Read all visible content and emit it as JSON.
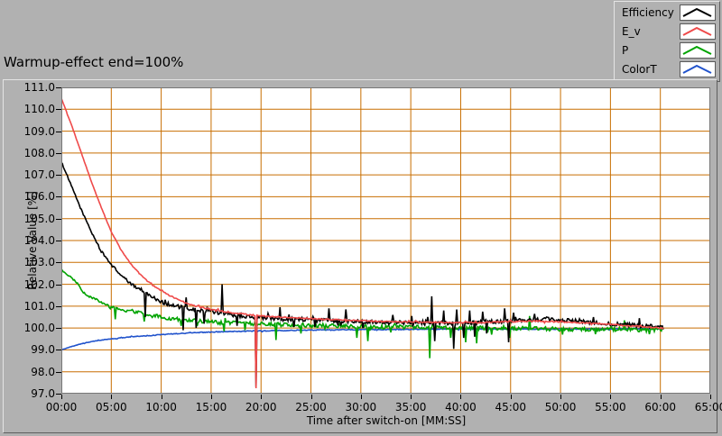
{
  "title": "Warmup-effect end=100%",
  "legend": {
    "items": [
      {
        "label": "Efficiency",
        "color": "#000000"
      },
      {
        "label": "E_v",
        "color": "#ef4a4a"
      },
      {
        "label": "P",
        "color": "#00a300"
      },
      {
        "label": "ColorT",
        "color": "#2153cc"
      }
    ]
  },
  "chart_data": {
    "type": "line",
    "title": "Warmup-effect end=100%",
    "xlabel": "Time after switch-on [MM:SS]",
    "ylabel": "Relative Value [%]",
    "xlim_minutes": [
      0,
      65
    ],
    "ylim": [
      97.0,
      111.0
    ],
    "grid": true,
    "grid_color": "#c86e00",
    "plot_bg": "#ffffff",
    "frame_color": "#777777",
    "legend_position": "top-right",
    "x_ticks": [
      {
        "t": 0,
        "label": "00:00"
      },
      {
        "t": 5,
        "label": "05:00"
      },
      {
        "t": 10,
        "label": "10:00"
      },
      {
        "t": 15,
        "label": "15:00"
      },
      {
        "t": 20,
        "label": "20:00"
      },
      {
        "t": 25,
        "label": "25:00"
      },
      {
        "t": 30,
        "label": "30:00"
      },
      {
        "t": 35,
        "label": "35:00"
      },
      {
        "t": 40,
        "label": "40:00"
      },
      {
        "t": 45,
        "label": "45:00"
      },
      {
        "t": 50,
        "label": "50:00"
      },
      {
        "t": 55,
        "label": "55:00"
      },
      {
        "t": 60,
        "label": "60:00"
      },
      {
        "t": 65,
        "label": "65:00"
      }
    ],
    "y_ticks": [
      {
        "v": 97,
        "label": "97.0"
      },
      {
        "v": 98,
        "label": "98.0"
      },
      {
        "v": 99,
        "label": "99.0"
      },
      {
        "v": 100,
        "label": "100.0"
      },
      {
        "v": 101,
        "label": "101.0"
      },
      {
        "v": 102,
        "label": "102.0"
      },
      {
        "v": 103,
        "label": "103.0"
      },
      {
        "v": 104,
        "label": "104.0"
      },
      {
        "v": 105,
        "label": "105.0"
      },
      {
        "v": 106,
        "label": "106.0"
      },
      {
        "v": 107,
        "label": "107.0"
      },
      {
        "v": 108,
        "label": "108.0"
      },
      {
        "v": 109,
        "label": "109.0"
      },
      {
        "v": 110,
        "label": "110.0"
      },
      {
        "v": 111,
        "label": "111.0"
      }
    ],
    "t_end_minutes": 60.3,
    "draw_order": [
      3,
      2,
      0,
      1
    ],
    "series": [
      {
        "name": "Efficiency",
        "color": "#000000",
        "noise": 0.09,
        "width": 1.6,
        "points": [
          [
            0,
            107.6
          ],
          [
            1,
            106.5
          ],
          [
            2,
            105.4
          ],
          [
            3,
            104.4
          ],
          [
            4,
            103.5
          ],
          [
            5,
            102.9
          ],
          [
            6,
            102.4
          ],
          [
            7,
            102.0
          ],
          [
            8,
            101.75
          ],
          [
            9,
            101.45
          ],
          [
            10,
            101.2
          ],
          [
            11,
            101.05
          ],
          [
            12,
            100.95
          ],
          [
            13,
            100.85
          ],
          [
            14,
            100.8
          ],
          [
            15,
            100.75
          ],
          [
            16,
            100.7
          ],
          [
            17,
            100.62
          ],
          [
            18,
            100.56
          ],
          [
            19,
            100.5
          ],
          [
            20,
            100.48
          ],
          [
            21,
            100.45
          ],
          [
            22,
            100.43
          ],
          [
            23,
            100.4
          ],
          [
            24,
            100.4
          ],
          [
            25,
            100.38
          ],
          [
            26,
            100.36
          ],
          [
            27,
            100.35
          ],
          [
            28,
            100.33
          ],
          [
            29,
            100.32
          ],
          [
            30,
            100.3
          ],
          [
            31,
            100.3
          ],
          [
            32,
            100.28
          ],
          [
            33,
            100.28
          ],
          [
            34,
            100.26
          ],
          [
            35,
            100.26
          ],
          [
            36,
            100.28
          ],
          [
            37,
            100.28
          ],
          [
            38,
            100.25
          ],
          [
            39,
            100.22
          ],
          [
            40,
            100.22
          ],
          [
            41,
            100.25
          ],
          [
            42,
            100.28
          ],
          [
            43,
            100.3
          ],
          [
            44,
            100.3
          ],
          [
            45,
            100.32
          ],
          [
            46,
            100.34
          ],
          [
            47,
            100.36
          ],
          [
            48,
            100.4
          ],
          [
            49,
            100.4
          ],
          [
            50,
            100.38
          ],
          [
            51,
            100.34
          ],
          [
            52,
            100.3
          ],
          [
            53,
            100.26
          ],
          [
            54,
            100.22
          ],
          [
            55,
            100.2
          ],
          [
            56,
            100.17
          ],
          [
            57,
            100.14
          ],
          [
            58,
            100.1
          ],
          [
            59,
            100.07
          ],
          [
            60,
            100.05
          ],
          [
            60.3,
            100.0
          ]
        ],
        "spikes": [
          [
            8.4,
            100.5
          ],
          [
            12.2,
            99.9
          ],
          [
            12.5,
            101.4
          ],
          [
            13.5,
            100.0
          ],
          [
            14.3,
            100.2
          ],
          [
            16.1,
            102.0
          ],
          [
            17.6,
            100.1
          ],
          [
            19.5,
            97.3
          ],
          [
            21.9,
            100.95
          ],
          [
            23.3,
            100.05
          ],
          [
            25.4,
            100.05
          ],
          [
            26.8,
            100.9
          ],
          [
            28.5,
            100.85
          ],
          [
            30.2,
            100.0
          ],
          [
            33.2,
            100.6
          ],
          [
            35.1,
            100.55
          ],
          [
            37.1,
            101.45
          ],
          [
            37.4,
            99.4
          ],
          [
            38.3,
            100.8
          ],
          [
            39.3,
            99.05
          ],
          [
            39.6,
            100.85
          ],
          [
            40.3,
            99.55
          ],
          [
            40.9,
            100.8
          ],
          [
            41.4,
            99.6
          ],
          [
            42.2,
            100.75
          ],
          [
            42.6,
            99.75
          ],
          [
            44.4,
            100.9
          ],
          [
            44.8,
            99.35
          ],
          [
            45.3,
            100.7
          ],
          [
            47.4,
            100.65
          ],
          [
            53.3,
            100.5
          ],
          [
            57.9,
            100.45
          ]
        ]
      },
      {
        "name": "E_v",
        "color": "#ef4a4a",
        "noise": 0.03,
        "width": 1.6,
        "points": [
          [
            0,
            110.5
          ],
          [
            1,
            109.3
          ],
          [
            2,
            108.0
          ],
          [
            3,
            106.7
          ],
          [
            4,
            105.5
          ],
          [
            5,
            104.4
          ],
          [
            6,
            103.55
          ],
          [
            7,
            102.9
          ],
          [
            8,
            102.4
          ],
          [
            9,
            102.0
          ],
          [
            10,
            101.7
          ],
          [
            11,
            101.45
          ],
          [
            12,
            101.25
          ],
          [
            13,
            101.05
          ],
          [
            14,
            100.95
          ],
          [
            15,
            100.85
          ],
          [
            16,
            100.78
          ],
          [
            17,
            100.7
          ],
          [
            18,
            100.65
          ],
          [
            19,
            100.6
          ],
          [
            20,
            100.55
          ],
          [
            21,
            100.52
          ],
          [
            22,
            100.5
          ],
          [
            23,
            100.47
          ],
          [
            24,
            100.45
          ],
          [
            25,
            100.43
          ],
          [
            26,
            100.4
          ],
          [
            28,
            100.38
          ],
          [
            30,
            100.34
          ],
          [
            32,
            100.3
          ],
          [
            34,
            100.28
          ],
          [
            36,
            100.27
          ],
          [
            38,
            100.26
          ],
          [
            40,
            100.25
          ],
          [
            42,
            100.25
          ],
          [
            44,
            100.28
          ],
          [
            46,
            100.3
          ],
          [
            48,
            100.32
          ],
          [
            50,
            100.28
          ],
          [
            52,
            100.24
          ],
          [
            54,
            100.2
          ],
          [
            56,
            100.13
          ],
          [
            58,
            100.07
          ],
          [
            60,
            100.0
          ],
          [
            60.3,
            100.0
          ]
        ],
        "spikes": [
          [
            19.5,
            97.25
          ]
        ]
      },
      {
        "name": "P",
        "color": "#00a300",
        "noise": 0.09,
        "width": 1.6,
        "points": [
          [
            0,
            102.65
          ],
          [
            0.5,
            102.45
          ],
          [
            1,
            102.3
          ],
          [
            1.5,
            102.1
          ],
          [
            2,
            101.75
          ],
          [
            2.5,
            101.5
          ],
          [
            3,
            101.4
          ],
          [
            3.5,
            101.3
          ],
          [
            4,
            101.15
          ],
          [
            4.5,
            101.05
          ],
          [
            5,
            100.95
          ],
          [
            6,
            100.85
          ],
          [
            7,
            100.75
          ],
          [
            8,
            100.7
          ],
          [
            9,
            100.6
          ],
          [
            10,
            100.5
          ],
          [
            11,
            100.42
          ],
          [
            12,
            100.38
          ],
          [
            13,
            100.35
          ],
          [
            14,
            100.3
          ],
          [
            15,
            100.28
          ],
          [
            16,
            100.25
          ],
          [
            17,
            100.25
          ],
          [
            18,
            100.22
          ],
          [
            19,
            100.2
          ],
          [
            20,
            100.2
          ],
          [
            21,
            100.18
          ],
          [
            22,
            100.16
          ],
          [
            23,
            100.15
          ],
          [
            24,
            100.14
          ],
          [
            25,
            100.12
          ],
          [
            26,
            100.12
          ],
          [
            27,
            100.1
          ],
          [
            28,
            100.1
          ],
          [
            29,
            100.08
          ],
          [
            30,
            100.08
          ],
          [
            31,
            100.06
          ],
          [
            32,
            100.05
          ],
          [
            34,
            100.05
          ],
          [
            36,
            100.04
          ],
          [
            37,
            100.02
          ],
          [
            38,
            100.02
          ],
          [
            39,
            100.0
          ],
          [
            42,
            100.0
          ],
          [
            44,
            100.0
          ],
          [
            45,
            99.98
          ],
          [
            46,
            99.98
          ],
          [
            47,
            100.0
          ],
          [
            48,
            99.98
          ],
          [
            49,
            99.96
          ],
          [
            50,
            99.95
          ],
          [
            52,
            99.93
          ],
          [
            54,
            99.93
          ],
          [
            56,
            99.95
          ],
          [
            58,
            99.9
          ],
          [
            60,
            99.95
          ],
          [
            60.3,
            99.95
          ]
        ],
        "spikes": [
          [
            5.4,
            100.4
          ],
          [
            8.3,
            100.3
          ],
          [
            12.0,
            100.1
          ],
          [
            16.3,
            99.85
          ],
          [
            18.4,
            99.9
          ],
          [
            21.5,
            99.45
          ],
          [
            24.0,
            99.75
          ],
          [
            29.6,
            99.55
          ],
          [
            30.7,
            99.4
          ],
          [
            33.0,
            99.8
          ],
          [
            36.9,
            98.62
          ],
          [
            39.0,
            99.55
          ],
          [
            40.5,
            99.35
          ],
          [
            41.6,
            99.3
          ],
          [
            43.1,
            99.7
          ],
          [
            44.9,
            99.55
          ],
          [
            46.9,
            100.55
          ],
          [
            50.2,
            99.7
          ],
          [
            53.5,
            99.72
          ],
          [
            56.4,
            100.35
          ],
          [
            58.9,
            99.72
          ]
        ]
      },
      {
        "name": "ColorT",
        "color": "#2153cc",
        "noise": 0.018,
        "width": 1.6,
        "points": [
          [
            0,
            99.0
          ],
          [
            1,
            99.15
          ],
          [
            2,
            99.28
          ],
          [
            3,
            99.38
          ],
          [
            4,
            99.45
          ],
          [
            5,
            99.5
          ],
          [
            6,
            99.55
          ],
          [
            7,
            99.6
          ],
          [
            8,
            99.63
          ],
          [
            9,
            99.66
          ],
          [
            10,
            99.7
          ],
          [
            12,
            99.75
          ],
          [
            14,
            99.8
          ],
          [
            16,
            99.83
          ],
          [
            18,
            99.85
          ],
          [
            20,
            99.87
          ],
          [
            24,
            99.9
          ],
          [
            28,
            99.92
          ],
          [
            32,
            99.93
          ],
          [
            36,
            99.94
          ],
          [
            40,
            99.95
          ],
          [
            45,
            99.95
          ],
          [
            50,
            99.95
          ],
          [
            55,
            99.96
          ],
          [
            60,
            99.97
          ],
          [
            60.3,
            99.97
          ]
        ],
        "spikes": []
      }
    ]
  }
}
